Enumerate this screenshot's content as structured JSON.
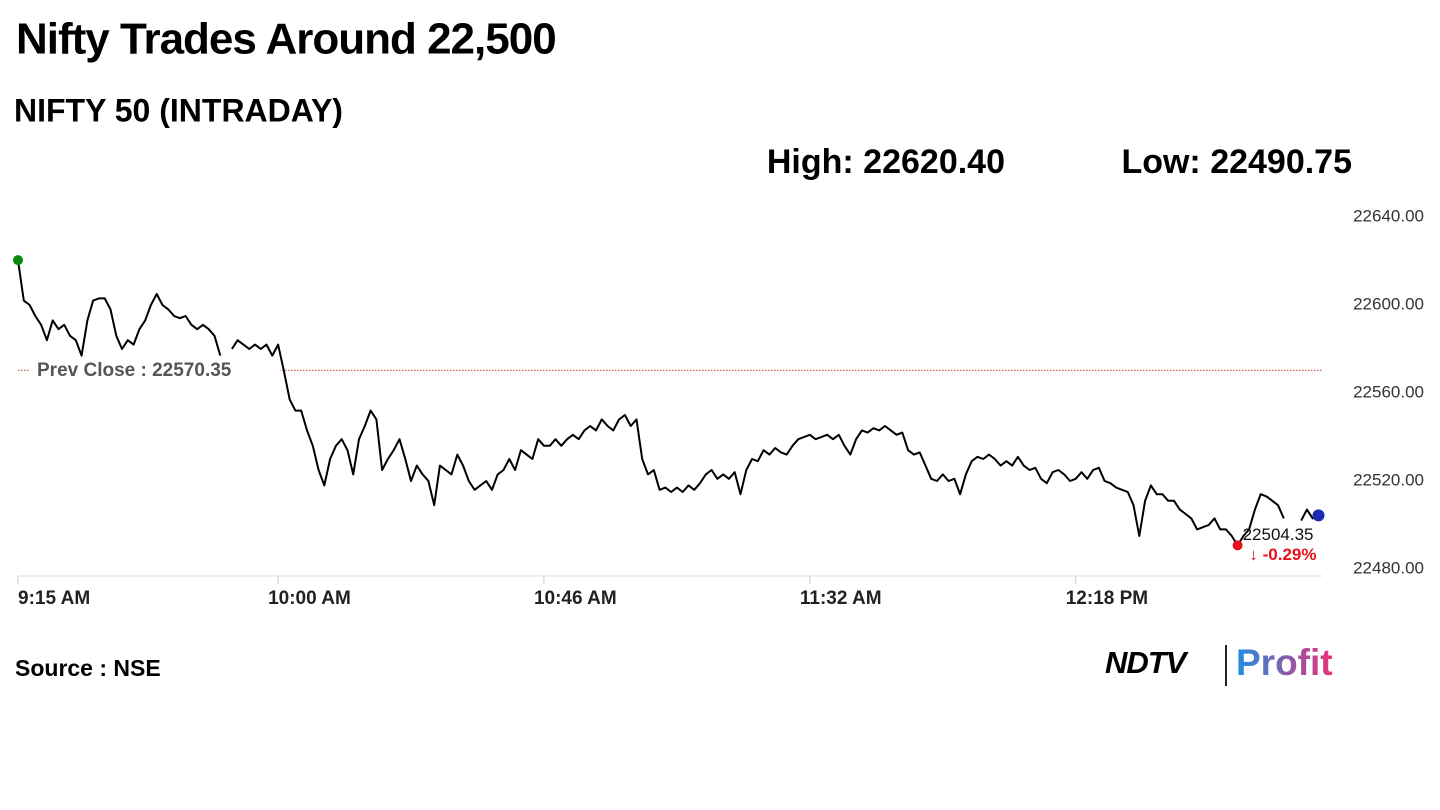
{
  "chart_data": {
    "type": "line",
    "title": "Nifty Trades Around 22,500",
    "subtitle": "NIFTY 50 (INTRADAY)",
    "high_label": "High: 22620.40",
    "low_label": "Low: 22490.75",
    "source": "Source : NSE",
    "brand": [
      "NDTV",
      "Profit"
    ],
    "prev_close": {
      "value": 22570.35,
      "label": "Prev Close : 22570.35",
      "color": "#c0392b"
    },
    "last_label": "22504.35",
    "change_label": "↓ -0.29%",
    "ylim": [
      22480,
      22640
    ],
    "yticks": [
      {
        "value": 22640,
        "label": "22640.00"
      },
      {
        "value": 22600,
        "label": "22600.00"
      },
      {
        "value": 22560,
        "label": "22560.00"
      },
      {
        "value": 22520,
        "label": "22520.00"
      },
      {
        "value": 22480,
        "label": "22480.00"
      }
    ],
    "grid": false,
    "marker_colors": {
      "start": "#0a8a0a",
      "low": "#e8101a",
      "end": "#1c2bb0"
    },
    "categories": [
      "9:15 AM",
      null,
      null,
      null,
      null,
      null,
      null,
      null,
      null,
      null,
      null,
      null,
      null,
      null,
      null,
      null,
      null,
      null,
      null,
      null,
      null,
      null,
      null,
      null,
      null,
      null,
      null,
      null,
      null,
      null,
      null,
      null,
      null,
      null,
      null,
      null,
      null,
      null,
      null,
      null,
      null,
      null,
      null,
      null,
      null,
      "10:00 AM",
      null,
      null,
      null,
      null,
      null,
      null,
      null,
      null,
      null,
      null,
      null,
      null,
      null,
      null,
      null,
      null,
      null,
      null,
      null,
      null,
      null,
      null,
      null,
      null,
      null,
      null,
      null,
      null,
      null,
      null,
      null,
      null,
      null,
      null,
      null,
      null,
      null,
      null,
      null,
      null,
      null,
      null,
      null,
      null,
      null,
      "10:46 AM",
      null,
      null,
      null,
      null,
      null,
      null,
      null,
      null,
      null,
      null,
      null,
      null,
      null,
      null,
      null,
      null,
      null,
      null,
      null,
      null,
      null,
      null,
      null,
      null,
      null,
      null,
      null,
      null,
      null,
      null,
      null,
      null,
      null,
      null,
      null,
      null,
      null,
      null,
      null,
      null,
      null,
      null,
      null,
      null,
      null,
      "11:32 AM",
      null,
      null,
      null,
      null,
      null,
      null,
      null,
      null,
      null,
      null,
      null,
      null,
      null,
      null,
      null,
      null,
      null,
      null,
      null,
      null,
      null,
      null,
      null,
      null,
      null,
      null,
      null,
      null,
      null,
      null,
      null,
      null,
      null,
      null,
      null,
      null,
      null,
      null,
      null,
      null,
      null,
      null,
      null,
      null,
      null,
      "12:18 PM",
      null,
      null,
      null,
      null,
      null,
      null,
      null,
      null,
      null,
      null,
      null,
      null,
      null,
      null,
      null,
      null,
      null,
      null,
      null,
      null,
      null,
      null,
      null,
      null,
      null,
      null,
      null,
      null,
      null,
      null,
      null,
      null,
      null,
      null,
      null,
      null,
      null,
      null,
      null,
      null,
      null,
      null
    ],
    "series": [
      {
        "name": "NIFTY 50",
        "color": "#000000",
        "values": [
          22620.4,
          22602,
          22600,
          22595,
          22591,
          22584,
          22593,
          22589,
          22591,
          22586,
          22584,
          22577,
          22593,
          22602,
          22603,
          22603,
          22598,
          22586,
          22580,
          22584,
          22582,
          22589,
          22593,
          22600,
          22605,
          22600,
          22598,
          22595,
          22594,
          22595,
          22591,
          22589,
          22591,
          22589,
          22586,
          22577,
          null,
          22580,
          22584,
          22582,
          22580,
          22582,
          22580,
          22582,
          22577,
          22582,
          22570,
          22557,
          22552,
          22552,
          22543,
          22536,
          22525,
          22518,
          22530,
          22536,
          22539,
          22534,
          22523,
          22539,
          22545,
          22552,
          22548,
          22525,
          22530,
          22534,
          22539,
          22530,
          22520,
          22527,
          22523,
          22520,
          22509,
          22527,
          22525,
          22523,
          22532,
          22527,
          22520,
          22516,
          22518,
          22520,
          22516,
          22523,
          22525,
          22530,
          22525,
          22534,
          22532,
          22530,
          22539,
          22536,
          22536,
          22539,
          22536,
          22539,
          22541,
          22539,
          22543,
          22545,
          22543,
          22548,
          22545,
          22543,
          22548,
          22550,
          22545,
          22548,
          22530,
          22523,
          22525,
          22516,
          22517,
          22515,
          22517,
          22515,
          22518,
          22516,
          22519,
          22523,
          22525,
          22521,
          22523,
          22521,
          22524,
          22514,
          22525,
          22530,
          22529,
          22534,
          22532,
          22535,
          22533,
          22532,
          22536,
          22539,
          22540,
          22541,
          22539,
          22540,
          22541,
          22539,
          22541,
          22536,
          22532,
          22539,
          22543,
          22542,
          22544,
          22543,
          22545,
          22543,
          22541,
          22542,
          22534,
          22532,
          22533,
          22527,
          22521,
          22520,
          22523,
          22520,
          22521,
          22514,
          22523,
          22529,
          22531,
          22530,
          22532,
          22530,
          22527,
          22529,
          22527,
          22531,
          22527,
          22525,
          22526,
          22521,
          22519,
          22524,
          22525,
          22523,
          22520,
          22521,
          22524,
          22521,
          22525,
          22526,
          22520,
          22519,
          22517,
          22516,
          22515,
          22509,
          22495,
          22511,
          22518,
          22514,
          22514,
          22511,
          22511,
          22507,
          22505,
          22503,
          22498,
          22499,
          22500,
          22503,
          22498,
          22498,
          22495,
          22490.75,
          22495,
          22498,
          22507,
          22514,
          22513,
          22511,
          22509,
          22503,
          null,
          null,
          22502,
          22507,
          22503,
          22504.35
        ]
      }
    ]
  }
}
